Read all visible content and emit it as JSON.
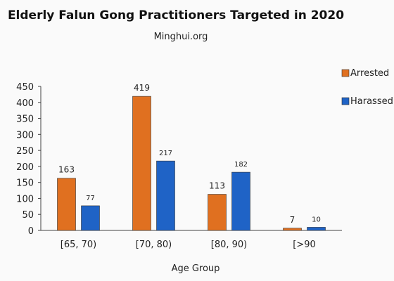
{
  "chart_data": {
    "type": "bar",
    "title": "Elderly Falun Gong Practitioners Targeted in 2020",
    "subtitle": "Minghui.org",
    "xlabel": "Age Group",
    "ylabel": "",
    "categories": [
      "[65, 70)",
      "[70, 80)",
      "[80, 90)",
      "[>90"
    ],
    "series": [
      {
        "name": "Arrested",
        "color": "#e07020",
        "values": [
          163,
          419,
          113,
          7
        ]
      },
      {
        "name": "Harassed",
        "color": "#1f63c6",
        "values": [
          77,
          217,
          182,
          10
        ]
      }
    ],
    "ylim": [
      0,
      450
    ],
    "yticks": [
      0,
      50,
      100,
      150,
      200,
      250,
      300,
      350,
      400,
      450
    ],
    "grid": false,
    "legend": "top-right"
  }
}
